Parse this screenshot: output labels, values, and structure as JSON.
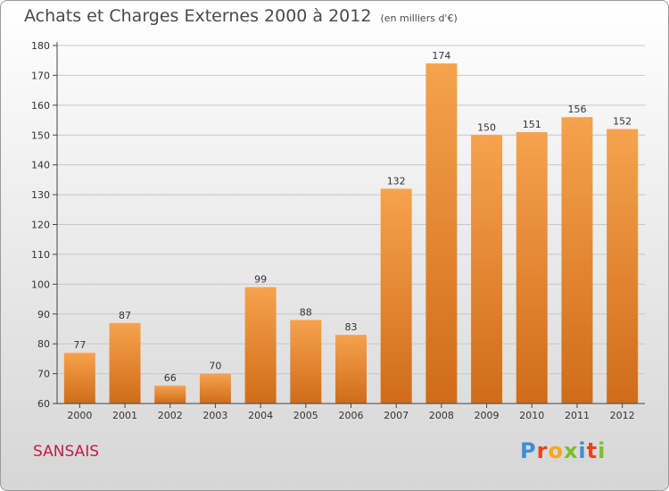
{
  "title": "Achats et Charges Externes 2000 à 2012",
  "unit": "(en milliers d'€)",
  "commune": "SANSAIS",
  "logo": {
    "letters": [
      "P",
      "r",
      "o",
      "x",
      "i",
      "t",
      "i"
    ],
    "colors": [
      "#3b8fd6",
      "#e8431c",
      "#f5a623",
      "#7cbf2a",
      "#3b8fd6",
      "#e8431c",
      "#7cbf2a"
    ]
  },
  "colors": {
    "bar_light": "#f6a24e",
    "bar_dark": "#d06c18",
    "grid": "#c8c8c8",
    "axis": "#444444",
    "text": "#333333"
  },
  "chart_data": {
    "type": "bar",
    "categories": [
      "2000",
      "2001",
      "2002",
      "2003",
      "2004",
      "2005",
      "2006",
      "2007",
      "2008",
      "2009",
      "2010",
      "2011",
      "2012"
    ],
    "values": [
      77,
      87,
      66,
      70,
      99,
      88,
      83,
      132,
      174,
      150,
      151,
      156,
      152
    ],
    "ylim": [
      60,
      180
    ],
    "yticks": [
      60,
      70,
      80,
      90,
      100,
      110,
      120,
      130,
      140,
      150,
      160,
      170,
      180
    ],
    "grid": true,
    "data_labels": true
  }
}
